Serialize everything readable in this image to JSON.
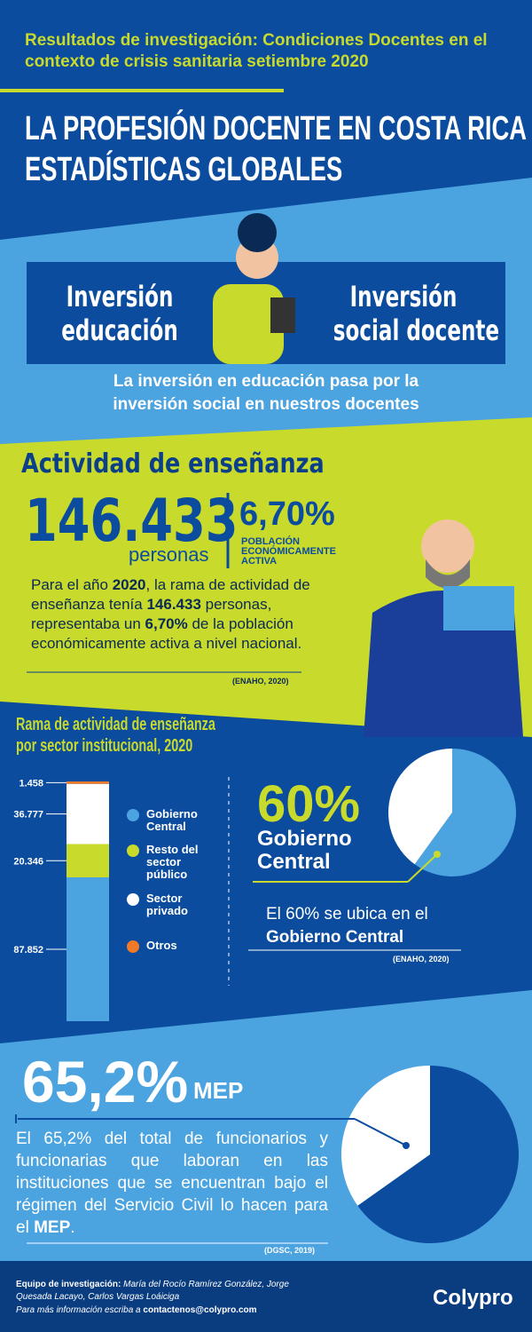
{
  "header": {
    "subtitle": "Resultados de investigación: Condiciones Docentes en el contexto de crisis sanitaria setiembre 2020",
    "title_lines": [
      "LA PROFESIÓN DOCENTE EN COSTA RICA",
      "ESTADÍSTICAS GLOBALES"
    ]
  },
  "investment": {
    "left": [
      "Inversión",
      "educación"
    ],
    "right": [
      "Inversión",
      "social docente"
    ],
    "caption": "La inversión en educación pasa por la inversión social en nuestros docentes"
  },
  "activity": {
    "title": "Actividad de enseñanza",
    "count": "146.433",
    "count_unit": "personas",
    "share": "6,70%",
    "share_label": "POBLACIÓN ECONÓMICAMENTE ACTIVA",
    "paragraph": [
      "Para el año ",
      "2020",
      ", la rama de actividad de enseñanza tenía ",
      "146.433",
      " personas, representaba un ",
      "6,70%",
      " de la población económicamente activa a nivel nacional."
    ],
    "source": "(ENAHO, 2020)"
  },
  "sector": {
    "title_lines": [
      "Rama de actividad de enseñanza",
      "por sector institucional, 2020"
    ],
    "chart": {
      "type": "bar",
      "stacked": true,
      "categories": [
        "Gobierno Central",
        "Resto del sector público",
        "Sector privado",
        "Otros"
      ],
      "values": [
        87852,
        20346,
        36777,
        1458
      ],
      "value_labels": [
        "87.852",
        "20.346",
        "36.777",
        "1.458"
      ],
      "colors": [
        "#4ba3e0",
        "#c8da2b",
        "#ffffff",
        "#f07a28"
      ]
    },
    "highlight": {
      "value_label": "60%",
      "label_lines": [
        "Gobierno",
        "Central"
      ]
    },
    "pie": {
      "type": "pie",
      "values": [
        60,
        40
      ],
      "colors": [
        "#4ba3e0",
        "#ffffff"
      ]
    },
    "note": [
      "El 60% se ubica en el",
      "Gobierno Central"
    ],
    "source": "(ENAHO, 2020)"
  },
  "mep": {
    "headline": "65,2%",
    "headline_unit": "MEP",
    "pie": {
      "type": "pie",
      "values": [
        65.2,
        34.8
      ],
      "colors": [
        "#0b4c9e",
        "#ffffff"
      ]
    },
    "paragraph": [
      "El 65,2% del total de funcionarios y funcionarias que laboran en las instituciones que se encuentran bajo el régimen del Servicio Civil lo hacen para el ",
      "MEP",
      "."
    ],
    "source": "(DGSC, 2019)"
  },
  "footer": {
    "team_label": "Equipo de investigación:",
    "team": "María del Rocío Ramírez González, Jorge Quesada Lacayo, Carlos Vargas Loáiciga",
    "contact_label": "Para más información escriba a ",
    "email": "contactenos@colypro.com",
    "logo": "Colypro"
  }
}
